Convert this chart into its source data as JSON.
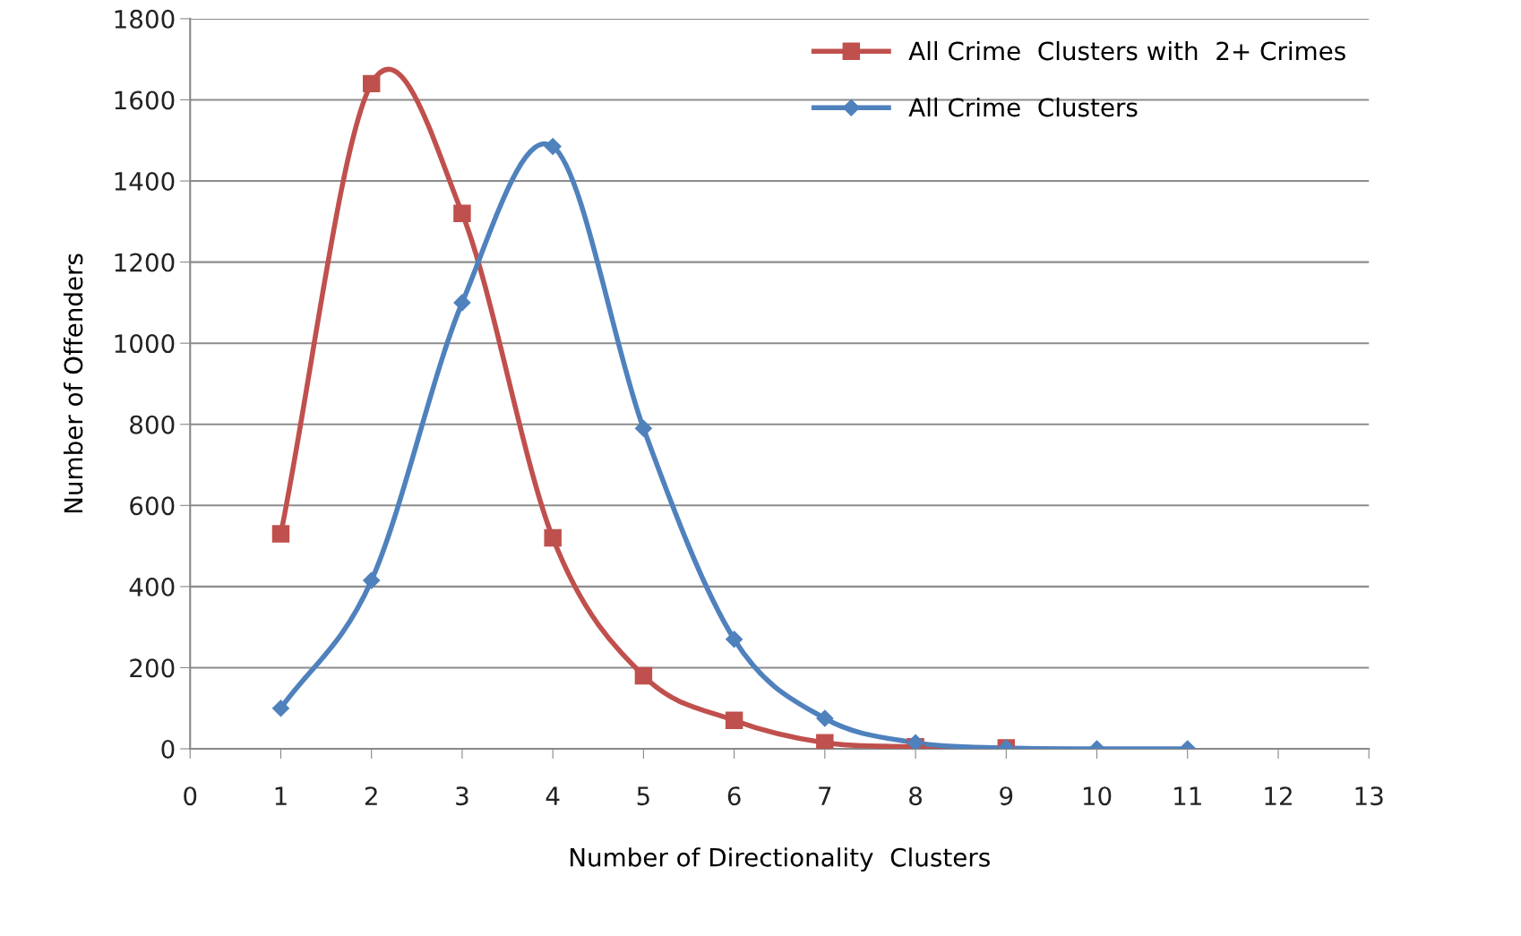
{
  "chart_data": {
    "type": "line",
    "xlabel": "Number of Directionality  Clusters",
    "ylabel": "Number of Offenders",
    "xlim": [
      0,
      13
    ],
    "xticks": [
      0,
      1,
      2,
      3,
      4,
      5,
      6,
      7,
      8,
      9,
      10,
      11,
      12,
      13
    ],
    "ylim": [
      0,
      1800
    ],
    "yticks": [
      0,
      200,
      400,
      600,
      800,
      1000,
      1200,
      1400,
      1600,
      1800
    ],
    "grid": "y",
    "legend": "top right",
    "line_style": "solid",
    "series": [
      {
        "name": "All Crime  Clusters with  2+ Crimes",
        "color": "#c0504d",
        "marker": "square",
        "x": [
          1,
          2,
          3,
          4,
          5,
          6,
          7,
          8,
          9
        ],
        "values": [
          530,
          1640,
          1320,
          520,
          180,
          70,
          15,
          5,
          2
        ]
      },
      {
        "name": "All Crime  Clusters",
        "color": "#4f81bd",
        "marker": "diamond",
        "x": [
          1,
          2,
          3,
          4,
          5,
          6,
          7,
          8,
          9,
          10,
          11
        ],
        "values": [
          100,
          415,
          1100,
          1485,
          790,
          270,
          75,
          15,
          2,
          0,
          0
        ]
      }
    ]
  }
}
